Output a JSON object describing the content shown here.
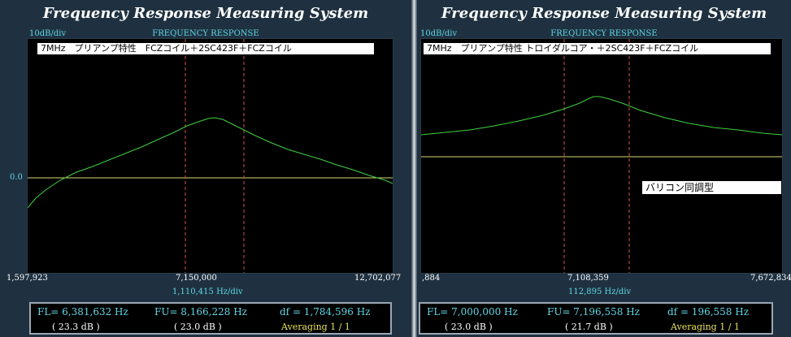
{
  "colors": {
    "background": "#1f3140",
    "plot_bg": "#000000",
    "trace": "#3fd13f",
    "marker": "#d0554a",
    "ref_line": "#d9d97a",
    "label": "#5fd7e6",
    "averaging": "#e8e05a"
  },
  "left": {
    "system_title": "Frequency Response Measuring System",
    "scale": "10dB/div",
    "response_title": "FREQUENCY RESPONSE",
    "note": "7MHz　プリアンプ特性　FCZコイル＋2SC423F＋FCZコイル",
    "ref_level": "0.0",
    "freq_start": "1,597,923",
    "freq_center": "7,150,000",
    "freq_end": "12,702,077",
    "hz_div": "1,110,415  Hz/div",
    "fl": "FL= 6,381,632  Hz",
    "fu": "FU= 8,166,228  Hz",
    "df": "df = 1,784,596  Hz",
    "fl_db": "( 23.3 dB )",
    "fu_db": "( 23.0 dB )",
    "averaging": "Averaging   1 / 1"
  },
  "right": {
    "system_title": "Frequency Response Measuring System",
    "scale": "10dB/div",
    "response_title": "FREQUENCY RESPONSE",
    "note": "7MHz　プリアンプ特性 トロイダルコア・＋2SC423F＋FCZコイル",
    "note2": "バリコン同調型",
    "freq_start": ",884",
    "freq_center": "7,108,359",
    "freq_end": "7,672,834",
    "hz_div": "112,895  Hz/div",
    "fl": "FL= 7,000,000  Hz",
    "fu": "FU= 7,196,558  Hz",
    "df": "df = 196,558  Hz",
    "fl_db": "( 23.0 dB )",
    "fu_db": "( 21.7 dB )",
    "averaging": "Averaging   1 / 1"
  }
}
